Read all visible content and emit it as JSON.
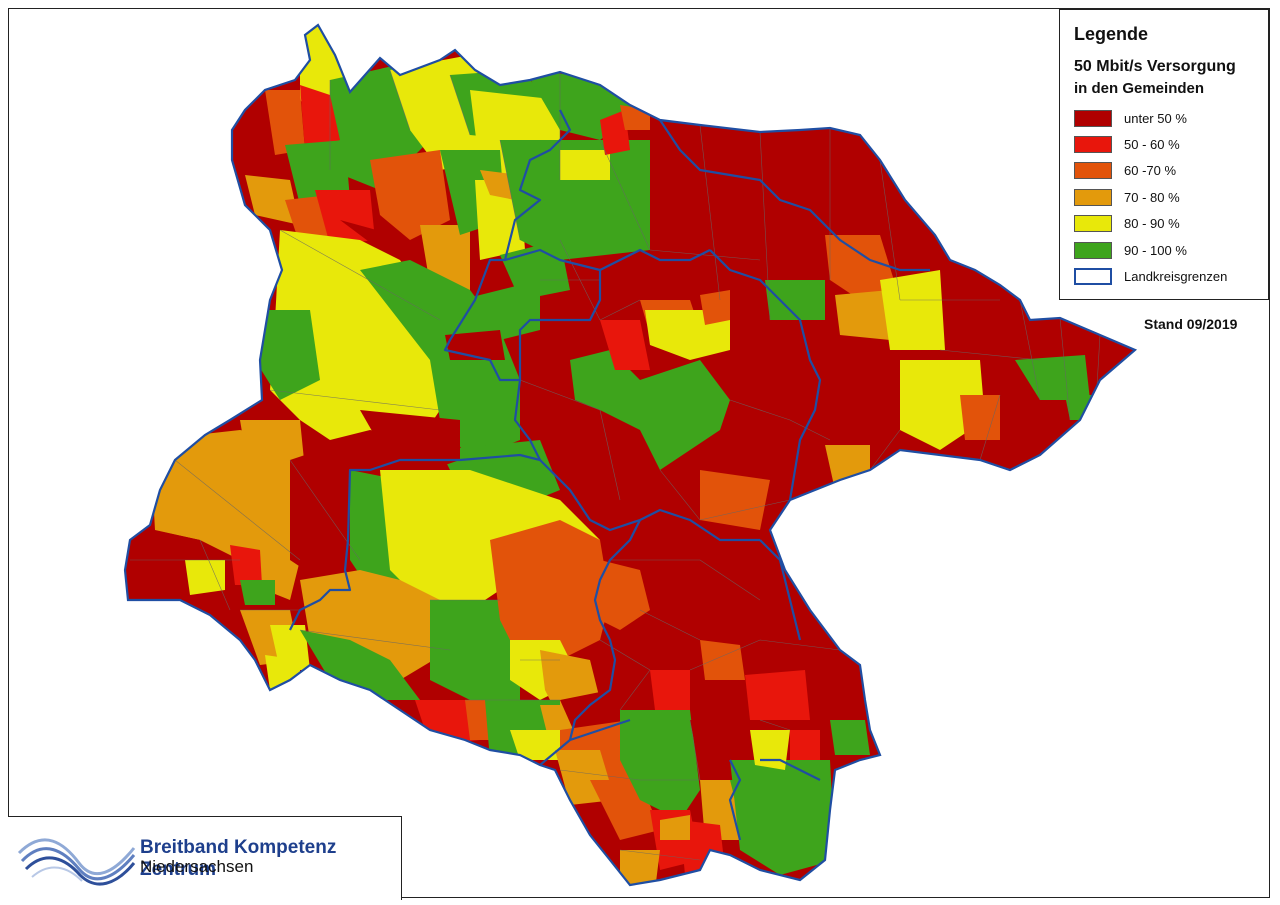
{
  "legend": {
    "title": "Legende",
    "subtitle_line1": "50 Mbit/s Versorgung",
    "subtitle_line2": "in den Gemeinden",
    "classes": [
      {
        "label": "unter 50 %",
        "color": "#b00000"
      },
      {
        "label": "50 - 60 %",
        "color": "#e8160c"
      },
      {
        "label": "60 -70 %",
        "color": "#e2530a"
      },
      {
        "label": "70 - 80 %",
        "color": "#e39a0c"
      },
      {
        "label": "80 - 90 %",
        "color": "#e8e80a"
      },
      {
        "label": "90 - 100 %",
        "color": "#3ea41c"
      }
    ],
    "border": {
      "label": "Landkreisgrenzen",
      "color": "#1f4ea3"
    }
  },
  "stand": "Stand 09/2019",
  "logo": {
    "line1": "Breitband Kompetenz Zentrum",
    "line2": "Niedersachsen",
    "icon": "swoosh-logo-icon"
  }
}
